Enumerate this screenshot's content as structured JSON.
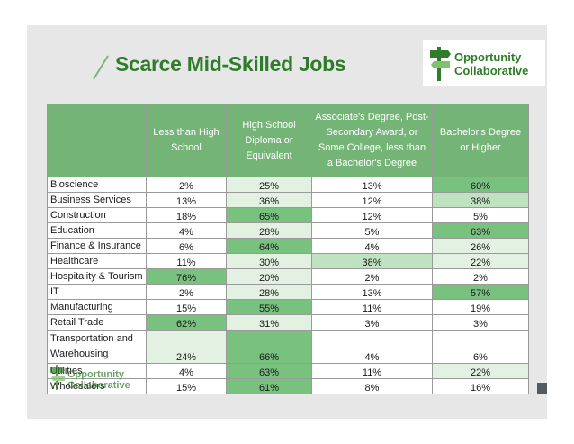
{
  "title": "Scarce Mid-Skilled Jobs",
  "logo": {
    "line1": "Opportunity",
    "line2": "Collaborative"
  },
  "table": {
    "headers": [
      "",
      "Less than High School",
      "High School Diploma or Equivalent",
      "Associate's Degree, Post-Secondary Award, or Some College, less than a Bachelor's Degree",
      "Bachelor's Degree or Higher"
    ],
    "rows": [
      {
        "sector": "Bioscience",
        "v": [
          "2%",
          "25%",
          "13%",
          "60%"
        ]
      },
      {
        "sector": "Business Services",
        "v": [
          "13%",
          "36%",
          "12%",
          "38%"
        ]
      },
      {
        "sector": "Construction",
        "v": [
          "18%",
          "65%",
          "12%",
          "5%"
        ]
      },
      {
        "sector": "Education",
        "v": [
          "4%",
          "28%",
          "5%",
          "63%"
        ]
      },
      {
        "sector": "Finance & Insurance",
        "v": [
          "6%",
          "64%",
          "4%",
          "26%"
        ]
      },
      {
        "sector": "Healthcare",
        "v": [
          "11%",
          "30%",
          "38%",
          "22%"
        ]
      },
      {
        "sector": "Hospitality & Tourism",
        "v": [
          "76%",
          "20%",
          "2%",
          "2%"
        ]
      },
      {
        "sector": "IT",
        "v": [
          "2%",
          "28%",
          "13%",
          "57%"
        ]
      },
      {
        "sector": "Manufacturing",
        "v": [
          "15%",
          "55%",
          "11%",
          "19%"
        ]
      },
      {
        "sector": "Retail Trade",
        "v": [
          "62%",
          "31%",
          "3%",
          "3%"
        ]
      },
      {
        "sector": "Transportation and Warehousing",
        "v": [
          "24%",
          "66%",
          "4%",
          "6%"
        ]
      },
      {
        "sector": "Utilities",
        "v": [
          "4%",
          "63%",
          "11%",
          "22%"
        ]
      },
      {
        "sector": "Wholesalers",
        "v": [
          "15%",
          "61%",
          "8%",
          "16%"
        ]
      }
    ]
  },
  "colors": {
    "brand_green": "#2f7d2a",
    "header_green": "#74b577",
    "heat_high": "#79c17f",
    "heat_mid": "#bfe2c1",
    "heat_low": "#e2f1e2",
    "heat_none": "#ffffff"
  },
  "icons": {
    "logo": "signpost-icon",
    "title_mark": "slash-icon"
  }
}
